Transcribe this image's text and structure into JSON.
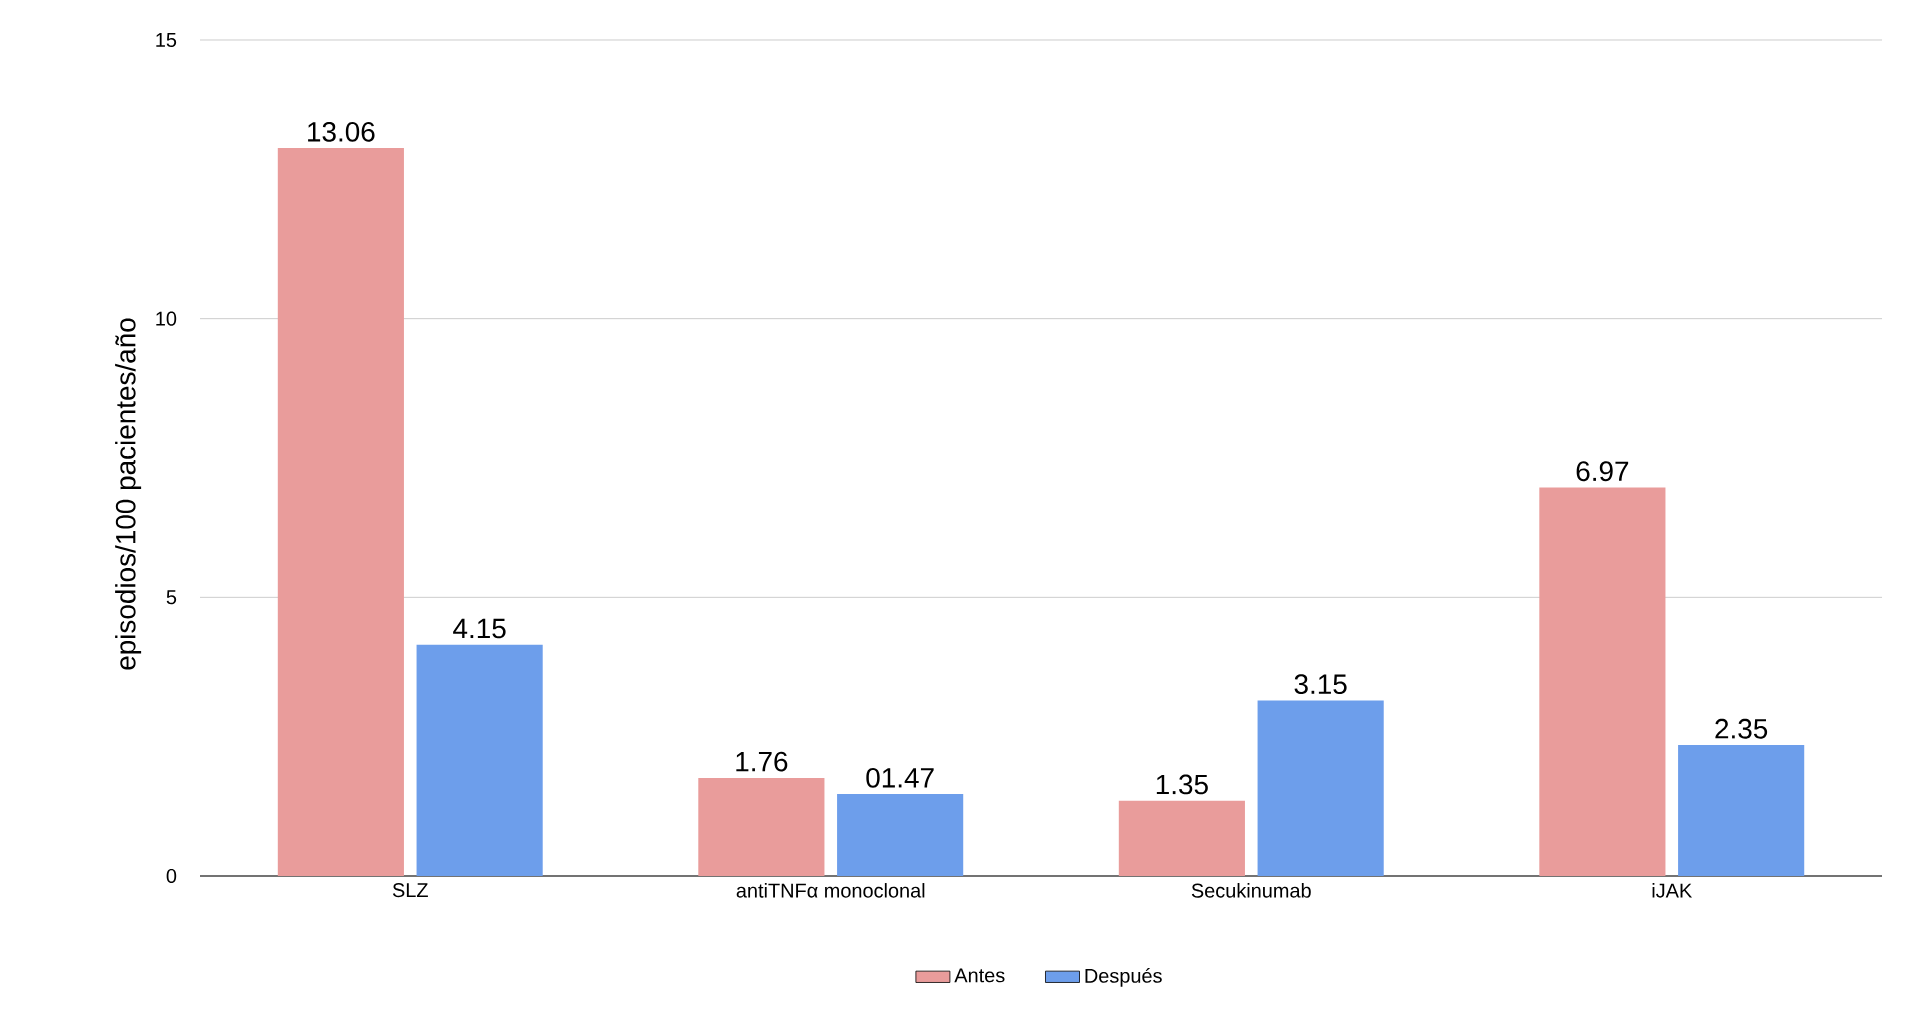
{
  "chart_data": {
    "type": "bar",
    "ylabel": "episodios/100 pacientes/año",
    "categories": [
      "SLZ",
      "antiTNFα monoclonal",
      "Secukinumab",
      "iJAK"
    ],
    "series": [
      {
        "name": "Antes",
        "color": "#e99c9b",
        "values": [
          13.06,
          1.76,
          1.35,
          6.97
        ],
        "value_labels": [
          "13.06",
          "1.76",
          "1.35",
          "6.97"
        ]
      },
      {
        "name": "Después",
        "color": "#6d9eeb",
        "values": [
          4.15,
          1.47,
          3.15,
          2.35
        ],
        "value_labels": [
          "4.15",
          "01.47",
          "3.15",
          "2.35"
        ]
      }
    ],
    "ylim": [
      0,
      15
    ],
    "yticks": [
      0,
      5,
      10,
      15
    ],
    "grid": "y",
    "legend": "bottom"
  }
}
